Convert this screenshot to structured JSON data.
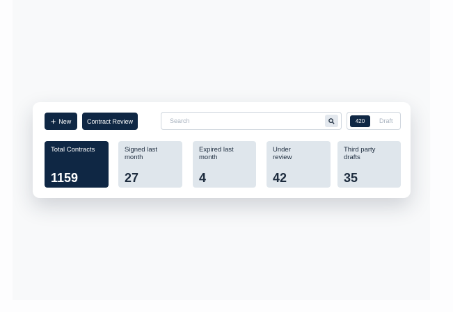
{
  "toolbar": {
    "new_label": "New",
    "contract_review_label": "Contract Review",
    "search_placeholder": "Search",
    "toggle_count": "420",
    "toggle_draft": "Draft"
  },
  "stats": [
    {
      "label": "Total Contracts",
      "value": "1159"
    },
    {
      "label": "Signed last month",
      "value": "27"
    },
    {
      "label": "Expired last month",
      "value": "4"
    },
    {
      "label": "Under review",
      "value": "42"
    },
    {
      "label": "Third party drafts",
      "value": "35"
    }
  ],
  "colors": {
    "primary": "#0f2744",
    "card_bg": "#dfe6ec"
  }
}
